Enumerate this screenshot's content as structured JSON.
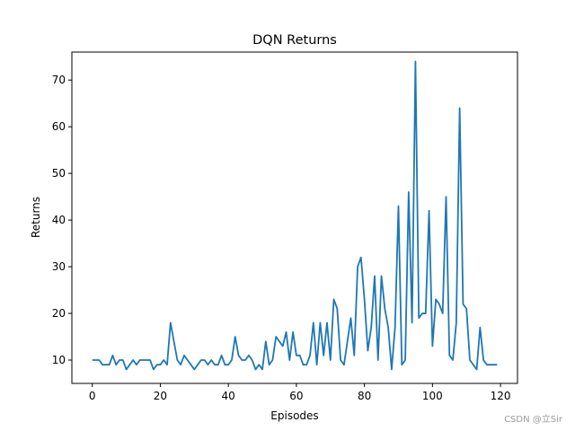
{
  "chart_data": {
    "type": "line",
    "title": "DQN Returns",
    "xlabel": "Episodes",
    "ylabel": "Returns",
    "xlim": [
      -6,
      125
    ],
    "ylim": [
      5,
      76
    ],
    "xticks": [
      0,
      20,
      40,
      60,
      80,
      100,
      120
    ],
    "yticks": [
      10,
      20,
      30,
      40,
      50,
      60,
      70
    ],
    "grid": false,
    "legend": "none",
    "color": "#1f77b4",
    "series": [
      {
        "x": [
          0,
          1,
          2,
          3,
          4,
          5,
          6,
          7,
          8,
          9,
          10,
          11,
          12,
          13,
          14,
          15,
          16,
          17,
          18,
          19,
          20,
          21,
          22,
          23,
          24,
          25,
          26,
          27,
          28,
          29,
          30,
          31,
          32,
          33,
          34,
          35,
          36,
          37,
          38,
          39,
          40,
          41,
          42,
          43,
          44,
          45,
          46,
          47,
          48,
          49,
          50,
          51,
          52,
          53,
          54,
          55,
          56,
          57,
          58,
          59,
          60,
          61,
          62,
          63,
          64,
          65,
          66,
          67,
          68,
          69,
          70,
          71,
          72,
          73,
          74,
          75,
          76,
          77,
          78,
          79,
          80,
          81,
          82,
          83,
          84,
          85,
          86,
          87,
          88,
          89,
          90,
          91,
          92,
          93,
          94,
          95,
          96,
          97,
          98,
          99,
          100,
          101,
          102,
          103,
          104,
          105,
          106,
          107,
          108,
          109,
          110,
          111,
          112,
          113,
          114,
          115,
          116,
          117,
          118,
          119
        ],
        "values": [
          10,
          10,
          10,
          9,
          9,
          9,
          11,
          9,
          10,
          10,
          8,
          9,
          10,
          9,
          10,
          10,
          10,
          10,
          8,
          9,
          9,
          10,
          9,
          18,
          14,
          10,
          9,
          11,
          10,
          9,
          8,
          9,
          10,
          10,
          9,
          10,
          9,
          9,
          11,
          9,
          9,
          10,
          15,
          11,
          10,
          10,
          11,
          10,
          8,
          9,
          8,
          14,
          9,
          10,
          15,
          14,
          13,
          16,
          10,
          16,
          11,
          11,
          9,
          9,
          11,
          18,
          9,
          18,
          11,
          18,
          10,
          23,
          21,
          10,
          9,
          14,
          19,
          11,
          30,
          32,
          23,
          12,
          17,
          28,
          10,
          28,
          21,
          17,
          8,
          17,
          43,
          9,
          10,
          46,
          18,
          74,
          19,
          20,
          20,
          42,
          13,
          23,
          22,
          20,
          45,
          11,
          10,
          18,
          64,
          22,
          21,
          10,
          9,
          8,
          17,
          10,
          9,
          9,
          9,
          9
        ]
      }
    ]
  },
  "watermark": "CSDN @立Sir"
}
